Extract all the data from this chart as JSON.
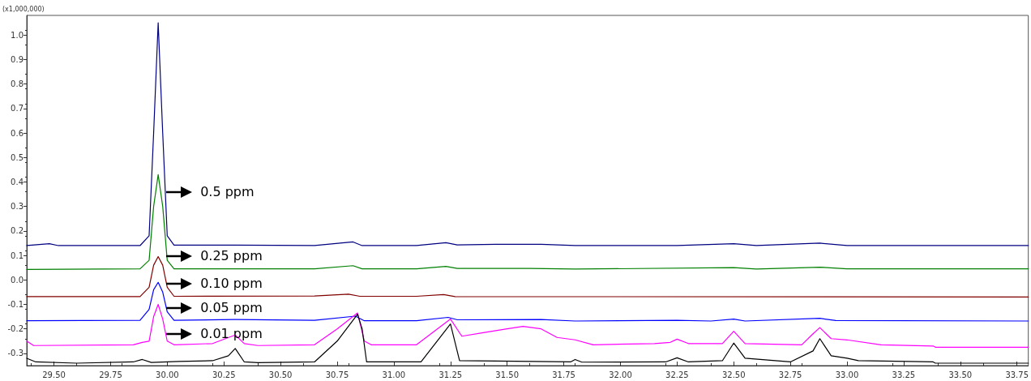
{
  "chart_data": {
    "type": "line",
    "ylabel": "(x1,000,000)",
    "xlim": [
      29.38,
      33.8
    ],
    "xticks": [
      {
        "value": 29.5,
        "label": "29.50"
      },
      {
        "value": 29.75,
        "label": "29.75"
      },
      {
        "value": 30,
        "label": "30.00"
      },
      {
        "value": 30.25,
        "label": "30.25"
      },
      {
        "value": 30.5,
        "label": "30.50"
      },
      {
        "value": 30.75,
        "label": "30.75"
      },
      {
        "value": 31,
        "label": "31.00"
      },
      {
        "value": 31.25,
        "label": "31.25"
      },
      {
        "value": 31.5,
        "label": "31.50"
      },
      {
        "value": 31.75,
        "label": "31.75"
      },
      {
        "value": 32,
        "label": "32.00"
      },
      {
        "value": 32.25,
        "label": "32.25"
      },
      {
        "value": 32.5,
        "label": "32.50"
      },
      {
        "value": 32.75,
        "label": "32.75"
      },
      {
        "value": 33,
        "label": "33.00"
      },
      {
        "value": 33.25,
        "label": "33.25"
      },
      {
        "value": 33.5,
        "label": "33.50"
      },
      {
        "value": 33.75,
        "label": "33.75"
      }
    ],
    "ylim": [
      -0.35,
      1.08
    ],
    "yticks": [
      -0.3,
      -0.2,
      -0.1,
      {
        "value": 0,
        "label": "0.0"
      },
      0.1,
      0.2,
      0.3,
      0.4,
      0.5,
      0.6,
      0.7,
      0.8,
      0.9,
      {
        "value": 1,
        "label": "1.0"
      }
    ],
    "grid": false,
    "marker": "none",
    "line_style": "solid",
    "legend": false,
    "series": [
      {
        "name": "0.5 ppm",
        "color": "#000080",
        "x": [
          29.38,
          29.48,
          29.52,
          29.88,
          29.92,
          29.94,
          29.96,
          29.98,
          30.0,
          30.03,
          30.3,
          30.65,
          30.82,
          30.86,
          31.1,
          31.23,
          31.28,
          31.45,
          31.65,
          31.8,
          32.25,
          32.5,
          32.6,
          32.88,
          33.0,
          33.8
        ],
        "values": [
          0.14,
          0.148,
          0.14,
          0.14,
          0.18,
          0.6,
          1.05,
          0.6,
          0.18,
          0.142,
          0.142,
          0.14,
          0.155,
          0.14,
          0.14,
          0.152,
          0.143,
          0.145,
          0.145,
          0.14,
          0.14,
          0.148,
          0.14,
          0.15,
          0.14,
          0.14
        ]
      },
      {
        "name": "0.25 ppm",
        "color": "#008000",
        "x": [
          29.38,
          29.88,
          29.92,
          29.94,
          29.96,
          29.98,
          30.0,
          30.03,
          30.65,
          30.82,
          30.86,
          31.1,
          31.23,
          31.28,
          31.6,
          31.8,
          32.5,
          32.6,
          32.88,
          33.0,
          33.8
        ],
        "values": [
          0.043,
          0.045,
          0.08,
          0.3,
          0.43,
          0.3,
          0.08,
          0.045,
          0.045,
          0.058,
          0.045,
          0.045,
          0.055,
          0.047,
          0.047,
          0.044,
          0.05,
          0.044,
          0.052,
          0.045,
          0.045
        ]
      },
      {
        "name": "0.10 ppm",
        "color": "#800000",
        "x": [
          29.38,
          29.88,
          29.92,
          29.94,
          29.96,
          29.98,
          30.0,
          30.03,
          30.65,
          30.8,
          30.85,
          31.1,
          31.22,
          31.27,
          33.8
        ],
        "values": [
          -0.068,
          -0.068,
          -0.03,
          0.06,
          0.095,
          0.06,
          -0.03,
          -0.067,
          -0.066,
          -0.058,
          -0.067,
          -0.067,
          -0.06,
          -0.068,
          -0.07
        ]
      },
      {
        "name": "0.05 ppm",
        "color": "#0000ff",
        "x": [
          29.38,
          29.88,
          29.92,
          29.94,
          29.96,
          29.98,
          30.0,
          30.03,
          30.3,
          30.65,
          30.83,
          30.87,
          31.1,
          31.24,
          31.28,
          31.65,
          31.8,
          32.25,
          32.4,
          32.5,
          32.55,
          32.88,
          32.95,
          33.8
        ],
        "values": [
          -0.167,
          -0.165,
          -0.12,
          -0.04,
          -0.01,
          -0.05,
          -0.13,
          -0.165,
          -0.162,
          -0.165,
          -0.148,
          -0.167,
          -0.167,
          -0.153,
          -0.163,
          -0.162,
          -0.168,
          -0.165,
          -0.168,
          -0.16,
          -0.168,
          -0.157,
          -0.166,
          -0.168
        ]
      },
      {
        "name": "0.01 ppm",
        "color": "#ff00ff",
        "x": [
          29.38,
          29.41,
          29.85,
          29.89,
          29.92,
          29.94,
          29.96,
          29.98,
          30.0,
          30.03,
          30.2,
          30.3,
          30.34,
          30.4,
          30.65,
          30.75,
          30.84,
          30.87,
          30.9,
          31.1,
          31.25,
          31.3,
          31.4,
          31.5,
          31.57,
          31.65,
          31.72,
          31.8,
          31.88,
          32.15,
          32.22,
          32.25,
          32.3,
          32.45,
          32.5,
          32.55,
          32.8,
          32.85,
          32.88,
          32.93,
          33.0,
          33.15,
          33.38,
          33.39,
          33.8
        ],
        "values": [
          -0.25,
          -0.268,
          -0.265,
          -0.255,
          -0.25,
          -0.15,
          -0.1,
          -0.16,
          -0.25,
          -0.265,
          -0.26,
          -0.225,
          -0.26,
          -0.268,
          -0.265,
          -0.2,
          -0.135,
          -0.25,
          -0.265,
          -0.265,
          -0.16,
          -0.23,
          -0.215,
          -0.2,
          -0.19,
          -0.2,
          -0.235,
          -0.245,
          -0.265,
          -0.26,
          -0.255,
          -0.242,
          -0.26,
          -0.26,
          -0.21,
          -0.26,
          -0.265,
          -0.22,
          -0.195,
          -0.24,
          -0.245,
          -0.265,
          -0.27,
          -0.275,
          -0.275
        ]
      },
      {
        "color": "#000000",
        "x": [
          29.38,
          29.42,
          29.6,
          29.85,
          29.89,
          29.93,
          30.05,
          30.2,
          30.27,
          30.3,
          30.34,
          30.4,
          30.65,
          30.75,
          30.84,
          30.86,
          30.88,
          31.12,
          31.25,
          31.29,
          31.78,
          31.8,
          31.83,
          32.2,
          32.25,
          32.3,
          32.45,
          32.5,
          32.55,
          32.75,
          32.85,
          32.88,
          32.93,
          33.0,
          33.05,
          33.38,
          33.39,
          33.8
        ],
        "values": [
          -0.32,
          -0.335,
          -0.34,
          -0.335,
          -0.325,
          -0.337,
          -0.333,
          -0.33,
          -0.31,
          -0.28,
          -0.335,
          -0.338,
          -0.335,
          -0.25,
          -0.14,
          -0.2,
          -0.335,
          -0.335,
          -0.18,
          -0.33,
          -0.335,
          -0.325,
          -0.336,
          -0.335,
          -0.318,
          -0.335,
          -0.33,
          -0.258,
          -0.32,
          -0.335,
          -0.29,
          -0.24,
          -0.31,
          -0.32,
          -0.33,
          -0.335,
          -0.34,
          -0.34
        ]
      }
    ]
  }
}
